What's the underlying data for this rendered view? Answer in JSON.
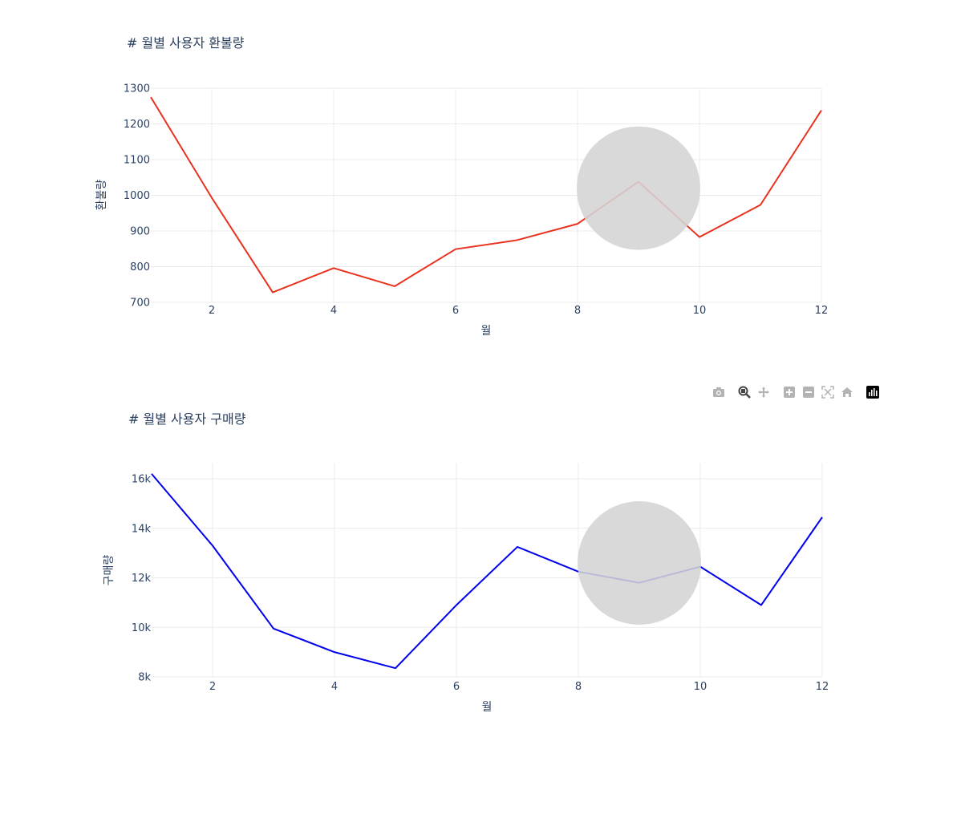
{
  "charts": [
    {
      "id": "refund",
      "title": "# 월별 사용자 환불량",
      "chart_data": {
        "type": "line",
        "title": "# 월별 사용자 환불량",
        "xlabel": "월",
        "ylabel": "환불량",
        "x": [
          1,
          2,
          3,
          4,
          5,
          6,
          7,
          8,
          9,
          10,
          11,
          12
        ],
        "series": [
          {
            "name": "",
            "color": "#e8321e",
            "values": [
              1275,
              993,
              728,
              796,
              745,
              849,
              874,
              920,
              1038,
              883,
              973,
              1238
            ]
          }
        ],
        "xlim": [
          1,
          12
        ],
        "ylim": [
          700,
          1300
        ],
        "xticks": [
          2,
          4,
          6,
          8,
          10,
          12
        ],
        "yticks": [
          700,
          800,
          900,
          1000,
          1100,
          1200,
          1300
        ],
        "ytick_labels": [
          "700",
          "800",
          "900",
          "1000",
          "1100",
          "1200",
          "1300"
        ],
        "grid": true,
        "highlight": {
          "x": 9,
          "y": 1020,
          "color": "#d4d4d4"
        }
      }
    },
    {
      "id": "purchase",
      "title": "# 월별 사용자 구매량",
      "chart_data": {
        "type": "line",
        "title": "# 월별 사용자 구매량",
        "xlabel": "월",
        "ylabel": "구매량",
        "x": [
          1,
          2,
          3,
          4,
          5,
          6,
          7,
          8,
          9,
          10,
          11,
          12
        ],
        "series": [
          {
            "name": "",
            "color": "#0000ee",
            "values": [
              16200,
              13300,
              9950,
              9000,
              8350,
              10900,
              13250,
              12250,
              11800,
              12450,
              10900,
              14450
            ]
          }
        ],
        "xlim": [
          1,
          12
        ],
        "ylim": [
          8000,
          16650
        ],
        "xticks": [
          2,
          4,
          6,
          8,
          10,
          12
        ],
        "yticks": [
          8000,
          10000,
          12000,
          14000,
          16000
        ],
        "ytick_labels": [
          "8k",
          "10k",
          "12k",
          "14k",
          "16k"
        ],
        "grid": true,
        "highlight": {
          "x": 9,
          "y": 12600,
          "color": "#d4d4d4"
        }
      }
    }
  ],
  "modebar": {
    "buttons": [
      "camera-icon",
      "zoom-icon",
      "pan-icon",
      "zoom-in-icon",
      "zoom-out-icon",
      "autoscale-icon",
      "home-icon",
      "plotly-logo-icon"
    ],
    "colors": {
      "inactive": "#b3b3b3",
      "active": "#444444",
      "logo": "#000000"
    }
  }
}
